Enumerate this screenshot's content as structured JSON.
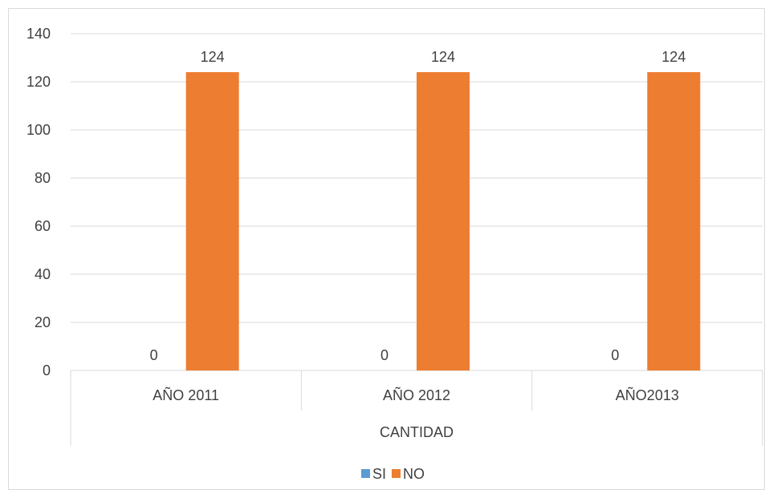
{
  "chart_data": {
    "type": "bar",
    "title": "",
    "categories": [
      "AÑO 2011",
      "AÑO 2012",
      "AÑO2013"
    ],
    "group_label": "CANTIDAD",
    "series": [
      {
        "name": "SI",
        "values": [
          0,
          0,
          0
        ],
        "color": "#5B9BD5"
      },
      {
        "name": "NO",
        "values": [
          124,
          124,
          124
        ],
        "color": "#ED7D31"
      }
    ],
    "ylim": [
      0,
      140
    ],
    "yticks": [
      0,
      20,
      40,
      60,
      80,
      100,
      120,
      140
    ],
    "grid": true,
    "data_labels": true,
    "legend_position": "bottom"
  }
}
